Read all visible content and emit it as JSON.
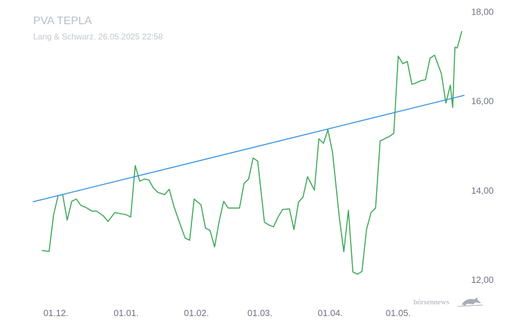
{
  "header": {
    "title": "PVA TEPLA",
    "subtitle": "Lang & Schwarz, 26.05.2025 22:58"
  },
  "watermark": {
    "text": "börsennews",
    "icon": "bull-icon"
  },
  "colors": {
    "price_line": "#3aa655",
    "trend_line": "#2f8fe0",
    "label": "#6f7280",
    "title": "#b9bcc8"
  },
  "chart_data": {
    "type": "line",
    "title": "PVA TEPLA",
    "subtitle": "Lang & Schwarz, 26.05.2025 22:58",
    "xlabel": "",
    "ylabel": "",
    "ylim": [
      11.6,
      18.1
    ],
    "y_ticks": [
      12,
      14,
      16,
      18
    ],
    "y_tick_labels": [
      "12,00",
      "14,00",
      "16,00",
      "18,00"
    ],
    "y_axis_position": "right",
    "grid": false,
    "legend": "none",
    "x_tick_labels": [
      {
        "label": "01.12.",
        "date": "2024-12-01"
      },
      {
        "label": "01.01.",
        "date": "2025-01-01"
      },
      {
        "label": "01.02.",
        "date": "2025-02-01"
      },
      {
        "label": "01.03.",
        "date": "2025-03-01"
      },
      {
        "label": "01.04.",
        "date": "2025-04-01"
      },
      {
        "label": "01.05.",
        "date": "2025-05-01"
      }
    ],
    "xlim": [
      "2024-11-21",
      "2025-05-26"
    ],
    "series": [
      {
        "style": "price",
        "points": [
          [
            "2024-11-25",
            12.65
          ],
          [
            "2024-11-28",
            12.63
          ],
          [
            "2024-11-30",
            13.45
          ],
          [
            "2024-12-02",
            13.88
          ],
          [
            "2024-12-04",
            13.9
          ],
          [
            "2024-12-06",
            13.33
          ],
          [
            "2024-12-08",
            13.75
          ],
          [
            "2024-12-10",
            13.8
          ],
          [
            "2024-12-12",
            13.66
          ],
          [
            "2024-12-14",
            13.62
          ],
          [
            "2024-12-17",
            13.53
          ],
          [
            "2024-12-19",
            13.53
          ],
          [
            "2024-12-22",
            13.42
          ],
          [
            "2024-12-24",
            13.3
          ],
          [
            "2024-12-27",
            13.5
          ],
          [
            "2024-12-30",
            13.47
          ],
          [
            "2025-01-01",
            13.45
          ],
          [
            "2025-01-03",
            13.4
          ],
          [
            "2025-01-05",
            14.55
          ],
          [
            "2025-01-07",
            14.2
          ],
          [
            "2025-01-09",
            14.25
          ],
          [
            "2025-01-11",
            14.23
          ],
          [
            "2025-01-13",
            14.05
          ],
          [
            "2025-01-15",
            13.95
          ],
          [
            "2025-01-18",
            13.9
          ],
          [
            "2025-01-20",
            14.02
          ],
          [
            "2025-01-22",
            13.65
          ],
          [
            "2025-01-24",
            13.35
          ],
          [
            "2025-01-27",
            12.93
          ],
          [
            "2025-01-29",
            12.88
          ],
          [
            "2025-01-31",
            13.8
          ],
          [
            "2025-02-03",
            13.67
          ],
          [
            "2025-02-05",
            13.15
          ],
          [
            "2025-02-07",
            13.1
          ],
          [
            "2025-02-09",
            12.73
          ],
          [
            "2025-02-11",
            13.3
          ],
          [
            "2025-02-13",
            13.75
          ],
          [
            "2025-02-15",
            13.6
          ],
          [
            "2025-02-18",
            13.6
          ],
          [
            "2025-02-20",
            13.6
          ],
          [
            "2025-02-22",
            14.15
          ],
          [
            "2025-02-24",
            14.25
          ],
          [
            "2025-02-26",
            14.72
          ],
          [
            "2025-02-28",
            14.65
          ],
          [
            "2025-03-03",
            13.28
          ],
          [
            "2025-03-05",
            13.22
          ],
          [
            "2025-03-07",
            13.18
          ],
          [
            "2025-03-09",
            13.4
          ],
          [
            "2025-03-11",
            13.57
          ],
          [
            "2025-03-14",
            13.58
          ],
          [
            "2025-03-16",
            13.12
          ],
          [
            "2025-03-18",
            13.73
          ],
          [
            "2025-03-20",
            13.85
          ],
          [
            "2025-03-22",
            14.3
          ],
          [
            "2025-03-25",
            14.0
          ],
          [
            "2025-03-27",
            15.15
          ],
          [
            "2025-03-29",
            15.05
          ],
          [
            "2025-03-31",
            15.35
          ],
          [
            "2025-04-02",
            14.85
          ],
          [
            "2025-04-05",
            13.4
          ],
          [
            "2025-04-07",
            12.62
          ],
          [
            "2025-04-09",
            13.55
          ],
          [
            "2025-04-11",
            12.17
          ],
          [
            "2025-04-13",
            12.12
          ],
          [
            "2025-04-15",
            12.18
          ],
          [
            "2025-04-17",
            13.12
          ],
          [
            "2025-04-19",
            13.5
          ],
          [
            "2025-04-21",
            13.6
          ],
          [
            "2025-04-23",
            15.1
          ],
          [
            "2025-04-25",
            15.15
          ],
          [
            "2025-04-27",
            15.2
          ],
          [
            "2025-04-29",
            15.27
          ],
          [
            "2025-05-01",
            17.0
          ],
          [
            "2025-05-03",
            16.83
          ],
          [
            "2025-05-05",
            16.88
          ],
          [
            "2025-05-07",
            16.37
          ],
          [
            "2025-05-09",
            16.4
          ],
          [
            "2025-05-11",
            16.45
          ],
          [
            "2025-05-13",
            16.47
          ],
          [
            "2025-05-15",
            16.95
          ],
          [
            "2025-05-17",
            17.02
          ],
          [
            "2025-05-20",
            16.61
          ],
          [
            "2025-05-22",
            15.95
          ],
          [
            "2025-05-24",
            16.35
          ],
          [
            "2025-05-25",
            15.85
          ],
          [
            "2025-05-26",
            17.2
          ],
          [
            "2025-05-27",
            17.18
          ],
          [
            "2025-05-29",
            17.55
          ]
        ]
      },
      {
        "style": "trend",
        "points": [
          [
            "2024-11-21",
            13.74
          ],
          [
            "2025-05-30",
            16.12
          ]
        ]
      }
    ]
  }
}
